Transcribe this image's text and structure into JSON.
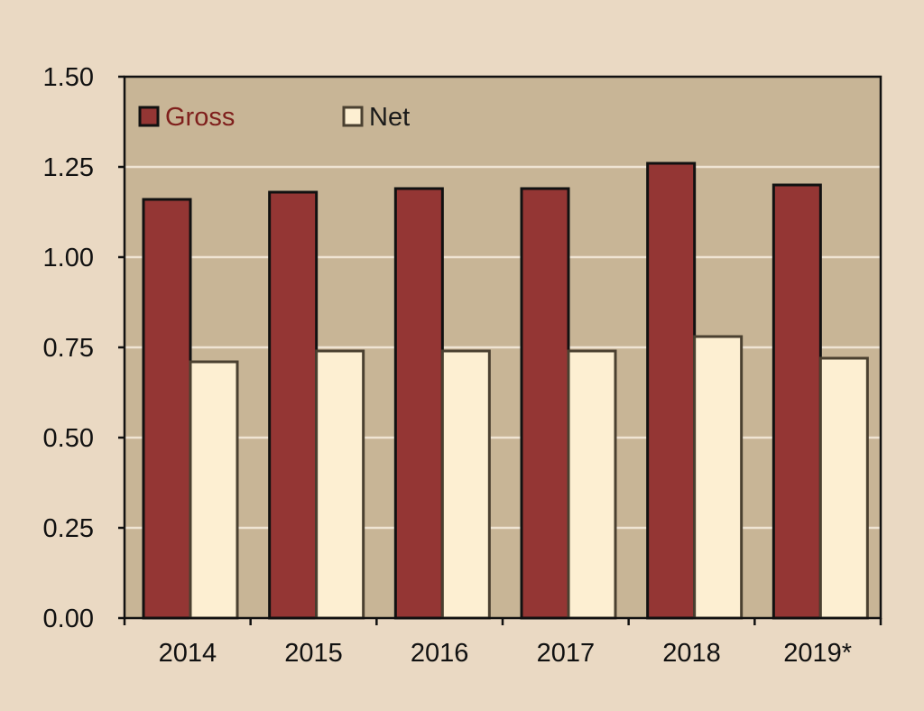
{
  "colors": {
    "background": "#EAD9C3",
    "plot_area": "#C8B596",
    "gridline": "#EFE4D3",
    "gross": "#943634",
    "net": "#FDEFD2",
    "gross_label": "#7F1F1C",
    "net_label": "#1A1A1A"
  },
  "chart_data": {
    "type": "bar",
    "title": "",
    "xlabel": "",
    "ylabel": "",
    "categories": [
      "2014",
      "2015",
      "2016",
      "2017",
      "2018",
      "2019*"
    ],
    "series": [
      {
        "name": "Gross",
        "values": [
          1.16,
          1.18,
          1.19,
          1.19,
          1.26,
          1.2
        ]
      },
      {
        "name": "Net",
        "values": [
          0.71,
          0.74,
          0.74,
          0.74,
          0.78,
          0.72
        ]
      }
    ],
    "ylim": [
      0,
      1.5
    ],
    "yticks": [
      "0.00",
      "0.25",
      "0.50",
      "0.75",
      "1.00",
      "1.25",
      "1.50"
    ],
    "grid": true,
    "legend": "top-left"
  }
}
